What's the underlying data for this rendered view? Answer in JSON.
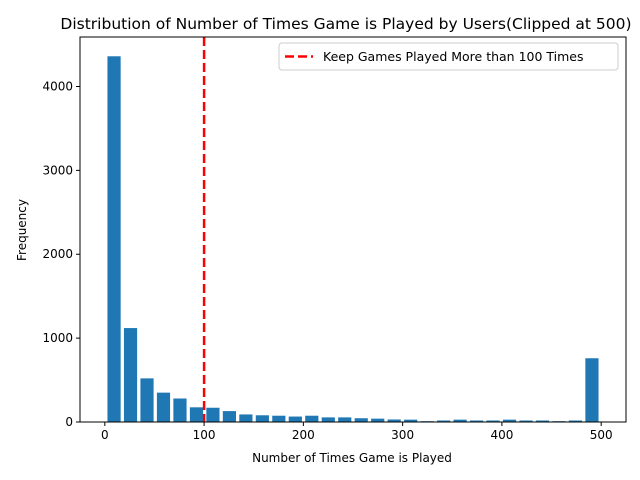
{
  "chart_data": {
    "type": "bar",
    "title": "Distribution of Number of Times Game is Played by Users(Clipped at 500)",
    "xlabel": "Number of Times Game is Played",
    "ylabel": "Frequency",
    "xlim": [
      -25,
      525
    ],
    "ylim": [
      0,
      4590
    ],
    "xticks": [
      0,
      100,
      200,
      300,
      400,
      500
    ],
    "yticks": [
      0,
      1000,
      2000,
      3000,
      4000
    ],
    "bin_width": 16.6,
    "bar_width_fraction": 0.8,
    "bins_x": [
      9.3,
      25.9,
      42.5,
      59.1,
      75.7,
      92.3,
      108.9,
      125.5,
      142.1,
      158.7,
      175.3,
      191.9,
      208.5,
      225.1,
      241.7,
      258.3,
      274.9,
      291.5,
      308.1,
      324.7,
      341.3,
      357.9,
      374.5,
      391.1,
      407.7,
      424.3,
      440.9,
      457.5,
      474.1,
      490.7
    ],
    "values": [
      4360,
      1120,
      520,
      350,
      280,
      175,
      170,
      130,
      90,
      80,
      75,
      65,
      75,
      55,
      55,
      45,
      40,
      30,
      28,
      10,
      18,
      28,
      18,
      18,
      28,
      18,
      18,
      10,
      18,
      760
    ],
    "bar_color": "#1f77b4",
    "grid": false,
    "reference_line": {
      "x": 100,
      "color": "#ff0000",
      "style": "dashed",
      "label": "Keep Games Played More than 100 Times"
    },
    "legend": {
      "position": "top-right",
      "entries": [
        "Keep Games Played More than 100 Times"
      ]
    }
  }
}
